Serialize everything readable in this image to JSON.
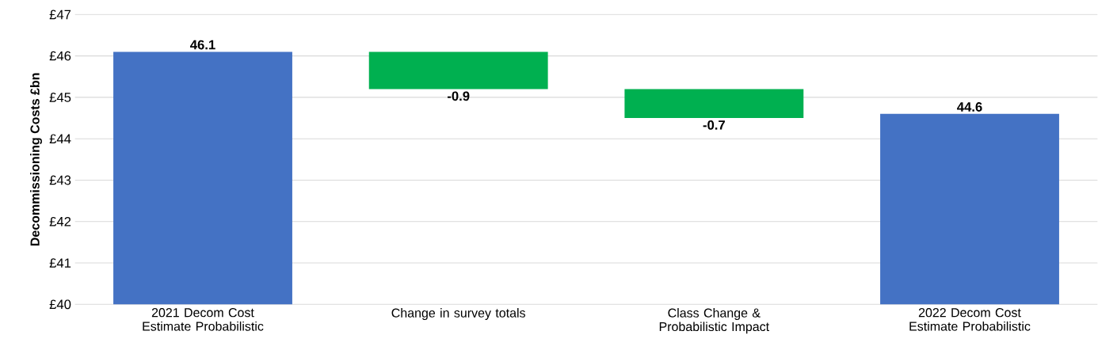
{
  "chart_data": {
    "type": "bar",
    "ylabel": "Decommissioning Costs £bn",
    "categories": [
      "2021 Decom Cost Estimate Probabilistic",
      "Change in survey totals",
      "Class Change & Probabilistic Impact",
      "2022 Decom Cost Estimate Probabilistic"
    ],
    "values": [
      46.1,
      -0.9,
      -0.7,
      44.6
    ],
    "base": [
      null,
      46.1,
      45.2,
      null
    ],
    "colors": [
      "#4472c4",
      "#00b050",
      "#00b050",
      "#4472c4"
    ],
    "data_labels": true,
    "ylim": [
      40,
      47
    ],
    "yticks": [
      {
        "value": 40,
        "label": "£40"
      },
      {
        "value": 41,
        "label": "£41"
      },
      {
        "value": 42,
        "label": "£42"
      },
      {
        "value": 43,
        "label": "£43"
      },
      {
        "value": 44,
        "label": "£44"
      },
      {
        "value": 45,
        "label": "£45"
      },
      {
        "value": 46,
        "label": "£46"
      },
      {
        "value": 47,
        "label": "£47"
      }
    ],
    "grid": "y"
  }
}
